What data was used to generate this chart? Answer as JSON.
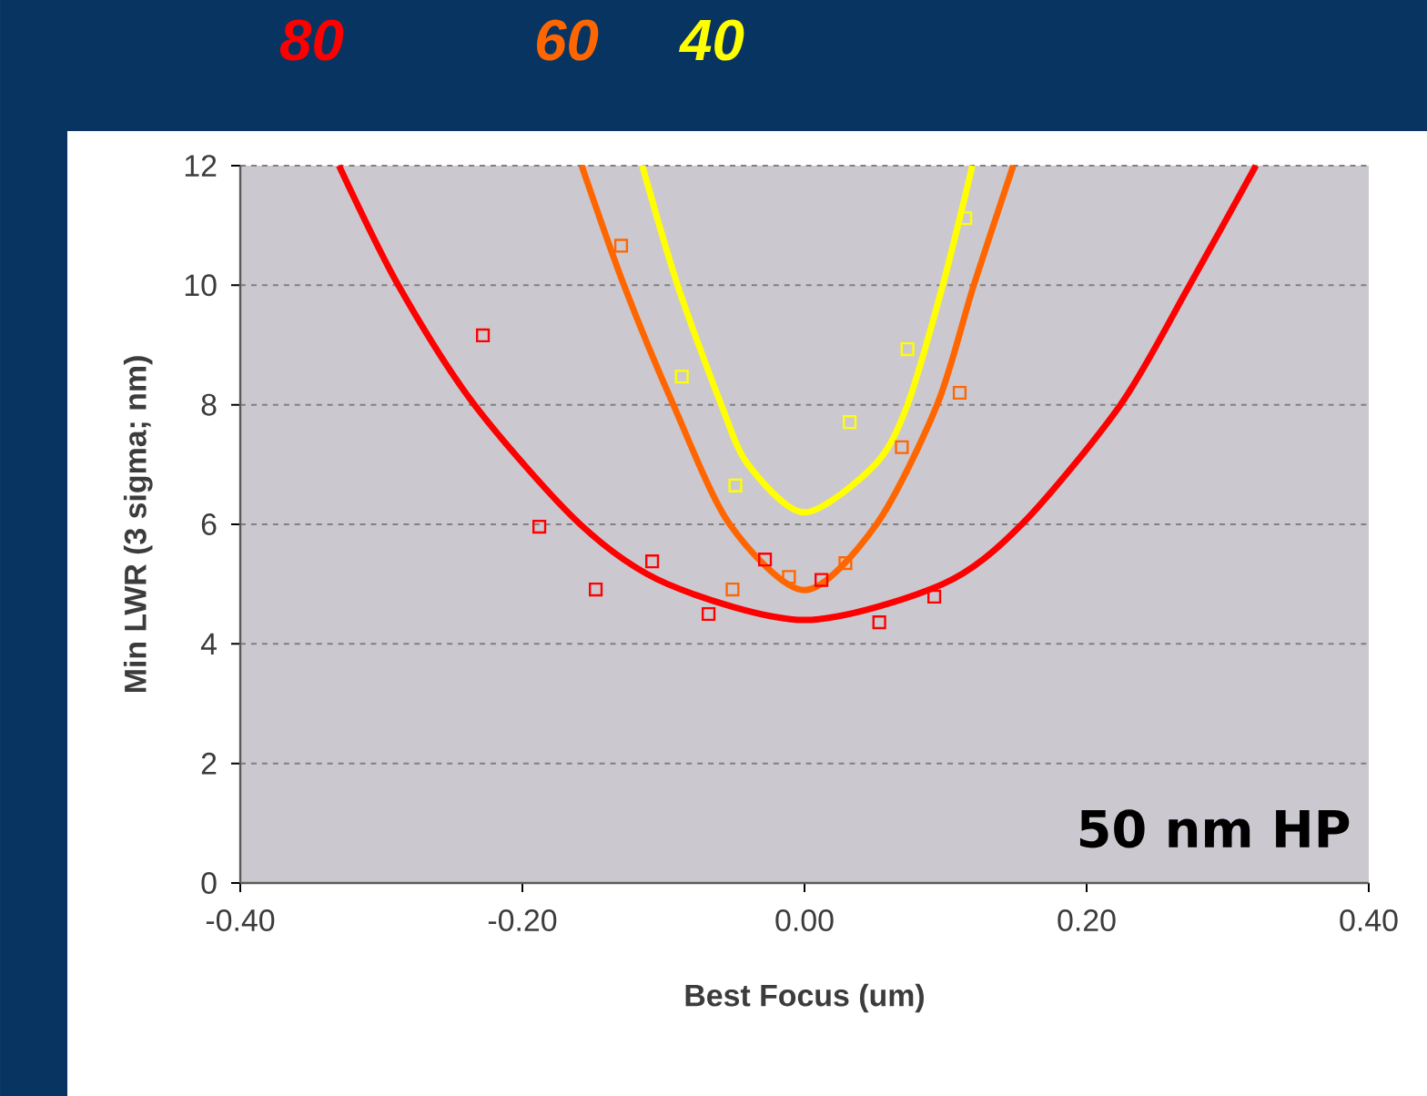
{
  "chart_data": {
    "type": "scatter",
    "xlabel": "Best Focus (um)",
    "ylabel": "Min LWR (3 sigma; nm)",
    "xlim": [
      -0.4,
      0.4
    ],
    "xticks": [
      {
        "value": -0.4,
        "label": "-0.40"
      },
      {
        "value": -0.2,
        "label": "-0.20"
      },
      {
        "value": 0,
        "label": "0.00"
      },
      {
        "value": 0.2,
        "label": "0.20"
      },
      {
        "value": 0.4,
        "label": "0.40"
      }
    ],
    "ylim": [
      0,
      12
    ],
    "yticks": [
      0,
      2,
      4,
      6,
      8,
      10,
      12
    ],
    "grid": "y",
    "legend": "top",
    "annotations": [
      "50 nm HP"
    ],
    "series": [
      {
        "name": "80",
        "color": "#ff0000",
        "marker": "square",
        "x": [
          -0.228,
          -0.188,
          -0.148,
          -0.108,
          -0.068,
          -0.028,
          0.012,
          0.053,
          0.092
        ],
        "values": [
          9.16,
          5.96,
          4.91,
          5.38,
          4.5,
          5.41,
          5.07,
          4.36,
          4.79
        ]
      },
      {
        "name": "60",
        "color": "#ff6600",
        "marker": "square",
        "x": [
          -0.13,
          -0.051,
          -0.011,
          0.029,
          0.069,
          0.11
        ],
        "values": [
          10.66,
          4.91,
          5.12,
          5.35,
          7.29,
          8.2
        ]
      },
      {
        "name": "40",
        "color": "#ffff00",
        "marker": "square",
        "x": [
          -0.087,
          -0.049,
          0.032,
          0.073,
          0.114
        ],
        "values": [
          8.47,
          6.65,
          7.71,
          8.93,
          11.12
        ]
      },
      {
        "color": "#ff0000",
        "type": "line",
        "marker": "none",
        "x": [
          -0.33,
          -0.288,
          -0.234,
          -0.159,
          -0.097,
          0.0,
          0.098,
          0.154,
          0.224,
          0.273,
          0.32
        ],
        "values": [
          12,
          10,
          8,
          6,
          5,
          4.4,
          5,
          6,
          8,
          10,
          12
        ]
      },
      {
        "color": "#ff6600",
        "type": "line",
        "marker": "none",
        "x": [
          -0.158,
          -0.128,
          -0.093,
          -0.053,
          0.0,
          0.051,
          0.094,
          0.12,
          0.148
        ],
        "values": [
          12,
          10,
          8,
          6,
          4.9,
          6,
          8,
          10,
          12
        ]
      },
      {
        "color": "#ffff00",
        "type": "line",
        "marker": "none",
        "x": [
          -0.115,
          -0.09,
          -0.059,
          -0.04,
          0.0,
          0.05,
          0.073,
          0.098,
          0.119
        ],
        "values": [
          12,
          10,
          8,
          7,
          6.2,
          7,
          8,
          10,
          12
        ]
      }
    ]
  }
}
